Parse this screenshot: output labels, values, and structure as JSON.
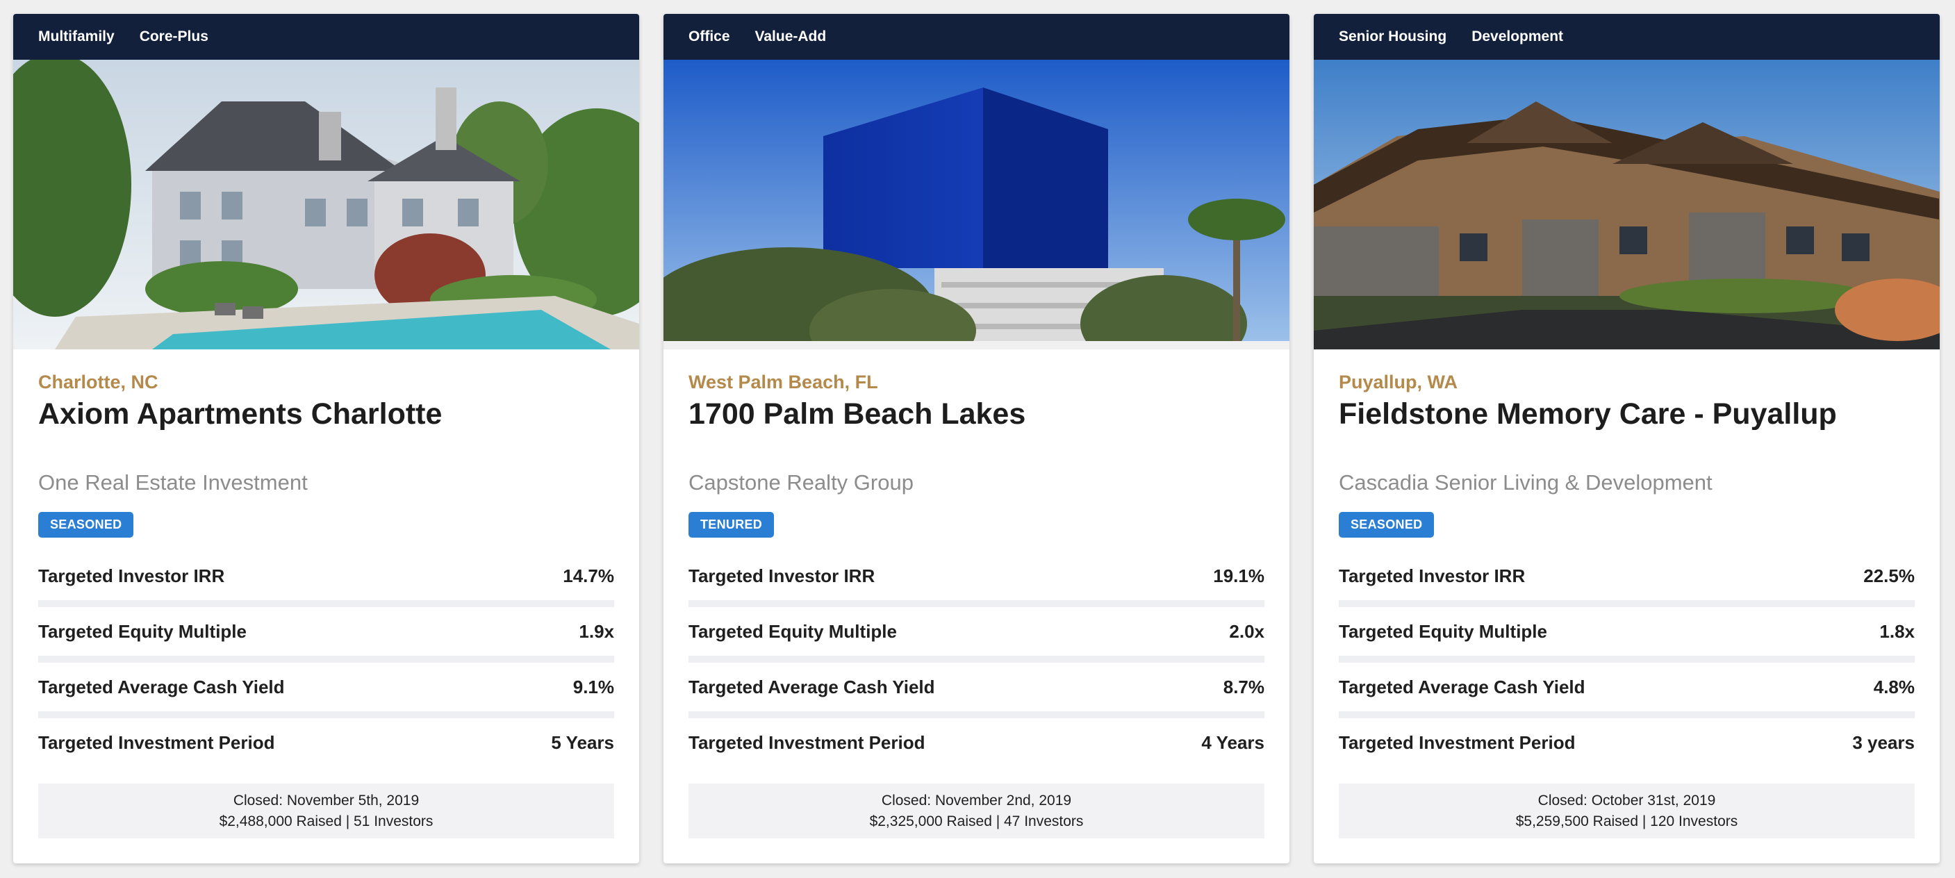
{
  "metric_labels": {
    "irr": "Targeted Investor IRR",
    "multiple": "Targeted Equity Multiple",
    "yield": "Targeted Average Cash Yield",
    "period": "Targeted Investment Period"
  },
  "colors": {
    "header_bg": "#13203b",
    "location": "#b38a4c",
    "badge": "#2a7fd4"
  },
  "cards": [
    {
      "tags": [
        "Multifamily",
        "Core-Plus"
      ],
      "location": "Charlotte, NC",
      "title": "Axiom Apartments Charlotte",
      "sponsor": "One Real Estate Investment",
      "badge": "SEASONED",
      "irr": "14.7%",
      "multiple": "1.9x",
      "yield": "9.1%",
      "period": "5 Years",
      "closed": "Closed: November 5th, 2019",
      "raised": "$2,488,000 Raised | 51 Investors"
    },
    {
      "tags": [
        "Office",
        "Value-Add"
      ],
      "location": "West Palm Beach, FL",
      "title": "1700 Palm Beach Lakes",
      "sponsor": "Capstone Realty Group",
      "badge": "TENURED",
      "irr": "19.1%",
      "multiple": "2.0x",
      "yield": "8.7%",
      "period": "4 Years",
      "closed": "Closed: November 2nd, 2019",
      "raised": "$2,325,000 Raised | 47 Investors"
    },
    {
      "tags": [
        "Senior Housing",
        "Development"
      ],
      "location": "Puyallup, WA",
      "title": "Fieldstone Memory Care - Puyallup",
      "sponsor": "Cascadia Senior Living & Development",
      "badge": "SEASONED",
      "irr": "22.5%",
      "multiple": "1.8x",
      "yield": "4.8%",
      "period": "3 years",
      "closed": "Closed: October 31st, 2019",
      "raised": "$5,259,500 Raised | 120 Investors"
    }
  ]
}
